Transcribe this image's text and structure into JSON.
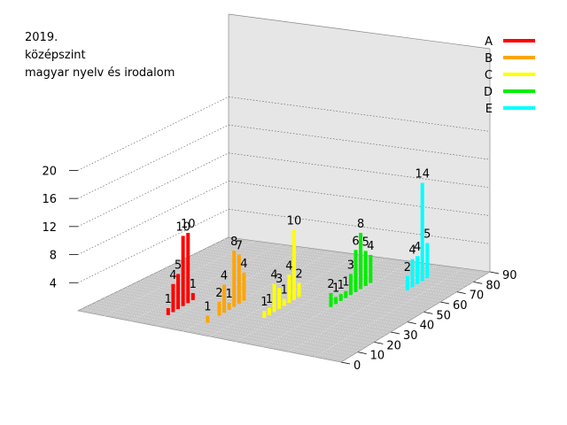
{
  "chart_data": {
    "type": "bar3d",
    "title_lines": [
      "2019.",
      "középszint",
      "magyar nyelv és irodalom"
    ],
    "z_ticks": [
      "4",
      "8",
      "12",
      "16",
      "20"
    ],
    "x_ticks": [
      "0",
      "10",
      "20",
      "30",
      "40",
      "50",
      "60",
      "70",
      "80",
      "90"
    ],
    "zlim": [
      0,
      20
    ],
    "xlim": [
      0,
      90
    ],
    "legend_position": "top-right",
    "series": [
      {
        "name": "A",
        "color": "#ff0000",
        "points": [
          {
            "x": 10,
            "value": 1
          },
          {
            "x": 13,
            "value": 4
          },
          {
            "x": 16,
            "value": 5
          },
          {
            "x": 19,
            "value": 10
          },
          {
            "x": 22,
            "value": 10
          },
          {
            "x": 25,
            "value": 1
          }
        ]
      },
      {
        "name": "B",
        "color": "#ffa500",
        "points": [
          {
            "x": 10,
            "value": 1
          },
          {
            "x": 17,
            "value": 2
          },
          {
            "x": 20,
            "value": 4
          },
          {
            "x": 23,
            "value": 1
          },
          {
            "x": 26,
            "value": 8
          },
          {
            "x": 29,
            "value": 7
          },
          {
            "x": 32,
            "value": 4
          }
        ]
      },
      {
        "name": "C",
        "color": "#ffff00",
        "points": [
          {
            "x": 22,
            "value": 1
          },
          {
            "x": 25,
            "value": 1
          },
          {
            "x": 28,
            "value": 4
          },
          {
            "x": 31,
            "value": 3
          },
          {
            "x": 34,
            "value": 1
          },
          {
            "x": 37,
            "value": 4
          },
          {
            "x": 40,
            "value": 10
          },
          {
            "x": 43,
            "value": 2
          }
        ]
      },
      {
        "name": "D",
        "color": "#00ee00",
        "points": [
          {
            "x": 40,
            "value": 2
          },
          {
            "x": 43,
            "value": 1
          },
          {
            "x": 46,
            "value": 1
          },
          {
            "x": 49,
            "value": 1
          },
          {
            "x": 52,
            "value": 3
          },
          {
            "x": 55,
            "value": 6
          },
          {
            "x": 58,
            "value": 8
          },
          {
            "x": 61,
            "value": 5
          },
          {
            "x": 64,
            "value": 4
          }
        ]
      },
      {
        "name": "E",
        "color": "#00ffff",
        "points": [
          {
            "x": 64,
            "value": 2
          },
          {
            "x": 67,
            "value": 4
          },
          {
            "x": 70,
            "value": 4
          },
          {
            "x": 73,
            "value": 14
          },
          {
            "x": 76,
            "value": 5
          }
        ]
      }
    ]
  }
}
